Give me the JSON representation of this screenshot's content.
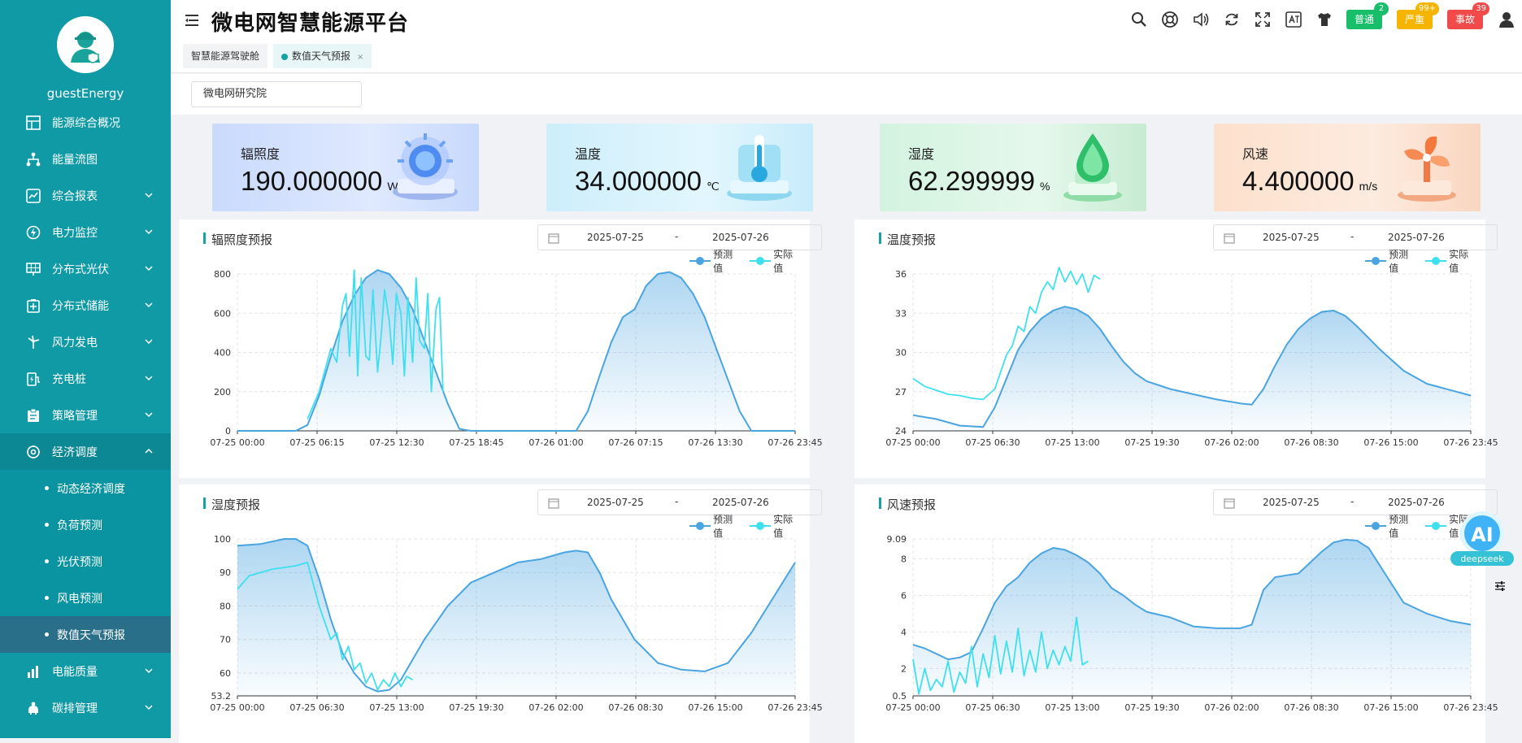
{
  "app": {
    "title": "微电网智慧能源平台"
  },
  "sidebar": {
    "username": "guestEnergy",
    "items": [
      {
        "label": "能源综合概况",
        "icon": "grid-dashboard-icon",
        "chevron": false
      },
      {
        "label": "能量流图",
        "icon": "flow-tree-icon",
        "chevron": false
      },
      {
        "label": "综合报表",
        "icon": "report-icon",
        "chevron": true
      },
      {
        "label": "电力监控",
        "icon": "power-monitor-icon",
        "chevron": true
      },
      {
        "label": "分布式光伏",
        "icon": "solar-panel-icon",
        "chevron": true
      },
      {
        "label": "分布式储能",
        "icon": "battery-storage-icon",
        "chevron": true
      },
      {
        "label": "风力发电",
        "icon": "wind-turbine-icon",
        "chevron": true
      },
      {
        "label": "充电桩",
        "icon": "charging-pile-icon",
        "chevron": true
      },
      {
        "label": "策略管理",
        "icon": "strategy-icon",
        "chevron": true
      },
      {
        "label": "经济调度",
        "icon": "economic-dispatch-icon",
        "chevron": true
      }
    ],
    "subitems": [
      "动态经济调度",
      "负荷预测",
      "光伏预测",
      "风电预测",
      "数值天气预报"
    ],
    "bottom_items": [
      {
        "label": "电能质量",
        "icon": "power-quality-icon"
      },
      {
        "label": "碳排管理",
        "icon": "carbon-icon"
      }
    ]
  },
  "header": {
    "alarms": [
      {
        "label": "普通",
        "count": "2",
        "color": "#19be6b"
      },
      {
        "label": "严重",
        "count": "99+",
        "color": "#f5b400"
      },
      {
        "label": "事故",
        "count": "39",
        "color": "#f04a4a"
      }
    ]
  },
  "tabs": [
    {
      "label": "智慧能源驾驶舱"
    },
    {
      "label": "数值天气预报",
      "close": "×"
    }
  ],
  "filter": {
    "org": "微电网研究院"
  },
  "kpis": [
    {
      "label": "辐照度",
      "value": "190.000000",
      "unit": "W/㎡"
    },
    {
      "label": "温度",
      "value": "34.000000",
      "unit": "℃"
    },
    {
      "label": "湿度",
      "value": "62.299999",
      "unit": "%"
    },
    {
      "label": "风速",
      "value": "4.400000",
      "unit": "m/s"
    }
  ],
  "legend": {
    "pred": "预测值",
    "act": "实际值"
  },
  "panels": [
    {
      "title": "辐照度预报",
      "start": "2025-07-25",
      "sep": "-",
      "end": "2025-07-26"
    },
    {
      "title": "温度预报",
      "start": "2025-07-25",
      "sep": "-",
      "end": "2025-07-26"
    },
    {
      "title": "湿度预报",
      "start": "2025-07-25",
      "sep": "-",
      "end": "2025-07-26"
    },
    {
      "title": "风速预报",
      "start": "2025-07-25",
      "sep": "-",
      "end": "2025-07-26"
    }
  ],
  "colors": {
    "predicted": "#4aa4e0",
    "actual": "#3ee0f0",
    "accent": "#14a3a3"
  },
  "ai": {
    "label": "AI",
    "brand": "deepseek"
  },
  "chart_data": [
    {
      "type": "line",
      "title": "辐照度预报",
      "ylim": [
        0,
        800
      ],
      "yticks": [
        "800",
        "600",
        "400",
        "200",
        "0"
      ],
      "xticks": [
        "07-25 00:00",
        "07-25 06:15",
        "07-25 12:30",
        "07-25 18:45",
        "07-26 01:00",
        "07-26 07:15",
        "07-26 13:30",
        "07-26 23:45"
      ],
      "series": [
        {
          "name": "预测值",
          "x_h": [
            0,
            5,
            6,
            7,
            8,
            9,
            10,
            11,
            12,
            13,
            14,
            15,
            16,
            17,
            18,
            19,
            20,
            24,
            28,
            29,
            30,
            31,
            32,
            33,
            34,
            35,
            36,
            37,
            38,
            39,
            40,
            41,
            42,
            43,
            44,
            47.75
          ],
          "values": [
            0,
            0,
            30,
            180,
            380,
            560,
            690,
            780,
            820,
            800,
            730,
            620,
            460,
            300,
            140,
            10,
            0,
            0,
            0,
            0,
            100,
            280,
            450,
            580,
            620,
            740,
            800,
            810,
            780,
            700,
            580,
            420,
            260,
            100,
            0,
            0
          ]
        },
        {
          "name": "实际值",
          "x_h": [
            6,
            7,
            8,
            8.5,
            9,
            9.3,
            9.6,
            10,
            10.3,
            10.6,
            11,
            11.3,
            11.6,
            12,
            12.3,
            12.6,
            13,
            13.3,
            13.6,
            14,
            14.3,
            14.6,
            15,
            15.3,
            15.6,
            16,
            16.3,
            16.6,
            17,
            17.3,
            17.6
          ],
          "values": [
            60,
            200,
            420,
            350,
            640,
            700,
            380,
            820,
            280,
            780,
            380,
            360,
            720,
            300,
            480,
            720,
            560,
            340,
            700,
            600,
            280,
            680,
            350,
            780,
            460,
            420,
            700,
            200,
            620,
            680,
            200
          ]
        }
      ]
    },
    {
      "type": "line",
      "title": "温度预报",
      "ylim": [
        24,
        36
      ],
      "yticks": [
        "36",
        "33",
        "30",
        "27",
        "24"
      ],
      "xticks": [
        "07-25 00:00",
        "07-25 06:30",
        "07-25 13:00",
        "07-25 19:30",
        "07-26 02:00",
        "07-26 08:30",
        "07-26 15:00",
        "07-26 23:45"
      ],
      "series": [
        {
          "name": "预测值",
          "x_h": [
            0,
            2,
            4,
            6,
            7,
            8,
            9,
            10,
            11,
            12,
            13,
            14,
            15,
            16,
            17,
            18,
            19,
            20,
            22,
            24,
            26,
            28,
            29,
            30,
            31,
            32,
            33,
            34,
            35,
            36,
            37,
            38,
            40,
            42,
            44,
            47.75
          ],
          "values": [
            25.2,
            24.9,
            24.4,
            24.3,
            25.8,
            28.0,
            30.2,
            31.6,
            32.6,
            33.2,
            33.5,
            33.3,
            32.8,
            31.8,
            30.5,
            29.3,
            28.4,
            27.8,
            27.2,
            26.8,
            26.4,
            26.1,
            26.0,
            27.2,
            29.0,
            30.6,
            31.8,
            32.6,
            33.1,
            33.2,
            32.8,
            32.0,
            30.2,
            28.6,
            27.6,
            26.7
          ]
        },
        {
          "name": "实际值",
          "x_h": [
            0,
            1,
            2,
            3,
            4,
            5,
            6,
            7,
            8,
            8.5,
            9,
            9.5,
            10,
            10.5,
            11,
            11.5,
            12,
            12.5,
            13,
            13.5,
            14,
            14.5,
            15,
            15.5,
            16
          ],
          "values": [
            28.0,
            27.4,
            27.1,
            26.8,
            26.7,
            26.5,
            26.4,
            27.2,
            29.8,
            30.5,
            32.0,
            31.6,
            33.5,
            33.0,
            34.6,
            35.4,
            34.8,
            36.5,
            35.4,
            36.2,
            35.2,
            36.0,
            34.6,
            35.9,
            35.6
          ]
        }
      ]
    },
    {
      "type": "line",
      "title": "湿度预报",
      "ylim": [
        53.2,
        100
      ],
      "yticks": [
        "100",
        "90",
        "80",
        "70",
        "60",
        "53.2"
      ],
      "xticks": [
        "07-25 00:00",
        "07-25 06:30",
        "07-25 13:00",
        "07-25 19:30",
        "07-26 02:00",
        "07-26 08:30",
        "07-26 15:00",
        "07-26 23:45"
      ],
      "series": [
        {
          "name": "预测值",
          "x_h": [
            0,
            2,
            4,
            5,
            6,
            7,
            8,
            9,
            10,
            11,
            12,
            13,
            14,
            15,
            16,
            18,
            20,
            22,
            24,
            26,
            28,
            29,
            30,
            31,
            32,
            34,
            36,
            38,
            40,
            42,
            44,
            47.75
          ],
          "values": [
            98,
            98.5,
            100,
            100,
            98,
            88,
            76,
            66,
            60,
            56,
            54.5,
            55,
            58,
            64,
            70,
            80,
            87,
            90,
            93,
            94,
            96,
            96.5,
            96,
            90,
            82,
            70,
            63,
            61,
            60.5,
            63,
            72,
            93
          ]
        },
        {
          "name": "实际值",
          "x_h": [
            0,
            1,
            2,
            3,
            4,
            5,
            5.5,
            6,
            7,
            8,
            8.5,
            9,
            9.5,
            10,
            10.5,
            11,
            11.5,
            12,
            12.5,
            13,
            13.5,
            14,
            14.5,
            15
          ],
          "values": [
            85,
            89,
            90,
            91,
            91.5,
            92,
            92.5,
            93,
            80,
            70,
            72,
            64,
            68,
            61,
            63,
            57,
            60,
            55,
            58,
            56,
            60,
            56,
            59,
            58
          ]
        }
      ]
    },
    {
      "type": "line",
      "title": "风速预报",
      "ylim": [
        0.5,
        9.09
      ],
      "yticks": [
        "9.09",
        "8",
        "6",
        "4",
        "2",
        "0.5"
      ],
      "xticks": [
        "07-25 00:00",
        "07-25 06:30",
        "07-25 13:00",
        "07-25 19:30",
        "07-26 02:00",
        "07-26 08:30",
        "07-26 15:00",
        "07-26 23:45"
      ],
      "series": [
        {
          "name": "预测值",
          "x_h": [
            0,
            1,
            2,
            3,
            4,
            5,
            6,
            7,
            8,
            9,
            10,
            11,
            12,
            13,
            14,
            15,
            16,
            17,
            18,
            19,
            20,
            22,
            24,
            26,
            28,
            29,
            30,
            31,
            32,
            33,
            34,
            35,
            36,
            37,
            38,
            39,
            40,
            42,
            44,
            46,
            47.75
          ],
          "values": [
            3.3,
            3.1,
            2.8,
            2.5,
            2.6,
            2.9,
            4.2,
            5.6,
            6.5,
            7.0,
            7.8,
            8.3,
            8.6,
            8.5,
            8.2,
            7.8,
            7.2,
            6.4,
            6.0,
            5.5,
            5.1,
            4.8,
            4.3,
            4.2,
            4.2,
            4.4,
            6.3,
            7.0,
            7.1,
            7.2,
            7.8,
            8.4,
            8.9,
            9.05,
            9.0,
            8.6,
            7.6,
            5.6,
            5.0,
            4.6,
            4.4
          ]
        },
        {
          "name": "实际值",
          "x_h": [
            0,
            0.5,
            1,
            1.5,
            2,
            2.5,
            3,
            3.5,
            4,
            4.5,
            5,
            5.5,
            6,
            6.5,
            7,
            7.5,
            8,
            8.5,
            9,
            9.5,
            10,
            10.5,
            11,
            11.5,
            12,
            12.5,
            13,
            13.5,
            14,
            14.5,
            15
          ],
          "values": [
            2.5,
            0.6,
            2.0,
            0.8,
            1.4,
            1.0,
            2.4,
            0.7,
            1.8,
            1.2,
            3.2,
            1.0,
            2.8,
            1.5,
            3.8,
            1.7,
            3.5,
            1.8,
            4.2,
            1.6,
            3.0,
            1.8,
            4.0,
            2.0,
            3.0,
            2.2,
            3.2,
            2.4,
            4.8,
            2.2,
            2.4
          ]
        }
      ]
    }
  ]
}
